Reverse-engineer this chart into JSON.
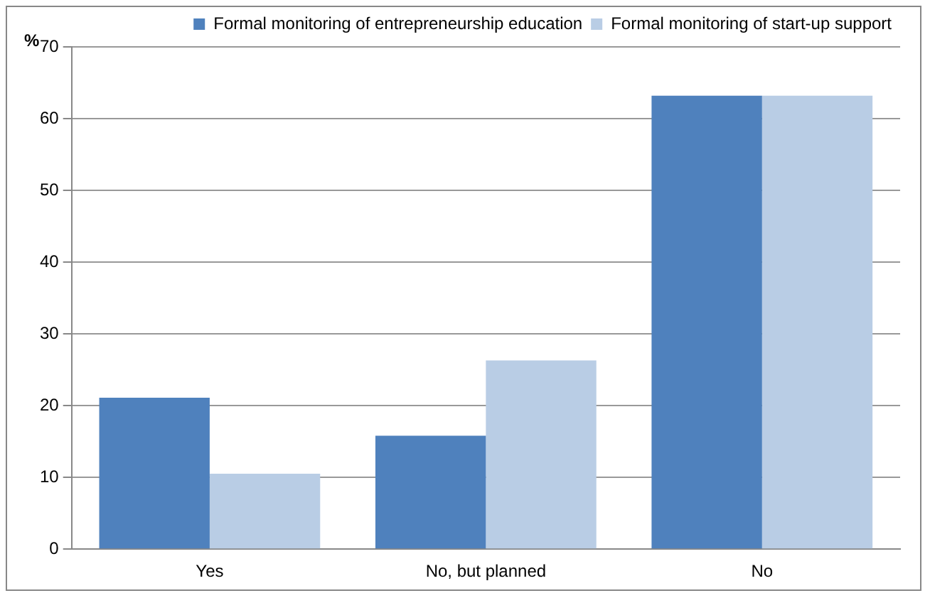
{
  "chart_data": {
    "type": "bar",
    "ylabel": "%",
    "categories": [
      "Yes",
      "No, but planned",
      "No"
    ],
    "series": [
      {
        "name": "Formal monitoring of entrepreneurship education",
        "color": "#4f81bd",
        "values": [
          21.1,
          15.8,
          63.2
        ]
      },
      {
        "name": "Formal monitoring of start-up support",
        "color": "#b9cde5",
        "values": [
          10.5,
          26.3,
          63.2
        ]
      }
    ],
    "ylim": [
      0,
      70
    ],
    "yticks": [
      0,
      10,
      20,
      30,
      40,
      50,
      60,
      70
    ],
    "grid": "y",
    "legend": "top right"
  }
}
